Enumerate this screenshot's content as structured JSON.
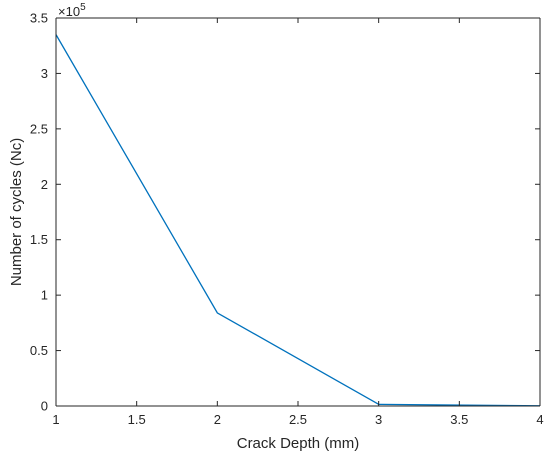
{
  "chart_data": {
    "type": "line",
    "title": "",
    "xlabel": "Crack Depth (mm)",
    "ylabel": "Number of cycles (Nc)",
    "xlim": [
      1,
      4
    ],
    "ylim": [
      0,
      350000
    ],
    "x_ticks": [
      1,
      1.5,
      2,
      2.5,
      3,
      3.5,
      4
    ],
    "x_tick_labels": [
      "1",
      "1.5",
      "2",
      "2.5",
      "3",
      "3.5",
      "4"
    ],
    "y_ticks": [
      0,
      50000,
      100000,
      150000,
      200000,
      250000,
      300000,
      350000
    ],
    "y_tick_labels": [
      "0",
      "0.5",
      "1",
      "1.5",
      "2",
      "2.5",
      "3",
      "3.5"
    ],
    "y_exponent": {
      "base": "×10",
      "power": "5"
    },
    "grid": false,
    "series": [
      {
        "x": [
          1,
          2,
          3,
          4
        ],
        "y": [
          335000,
          84000,
          1500,
          200
        ],
        "color": "#0072BD"
      }
    ]
  }
}
